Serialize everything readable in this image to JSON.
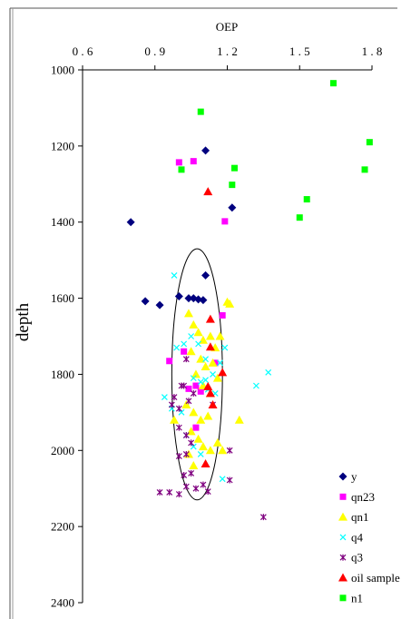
{
  "chart_data": {
    "type": "scatter",
    "title": "",
    "xlabel": "OEP",
    "ylabel": "depth",
    "xlim": [
      0.6,
      1.8
    ],
    "ylim": [
      1000,
      2400
    ],
    "y_inverted": true,
    "x_axis_position": "top",
    "xticks": [
      "0.6",
      "0.9",
      "1.2",
      "1.5",
      "1.8"
    ],
    "yticks": [
      "1000",
      "1200",
      "1400",
      "1600",
      "1800",
      "2000",
      "2200",
      "2400"
    ],
    "grid": false,
    "legend_position": "bottom-right",
    "annotation": "ellipse enclosing the main cluster (approx. OEP 0.97–1.18, depth 1470–2130)",
    "ellipse": {
      "cx": 1.075,
      "cy": 1800,
      "rx": 0.105,
      "ry": 330
    },
    "series": [
      {
        "name": "y",
        "marker": "diamond",
        "color": "#00007f",
        "points": [
          [
            0.8,
            1400
          ],
          [
            0.86,
            1608
          ],
          [
            0.92,
            1618
          ],
          [
            1.0,
            1595
          ],
          [
            1.04,
            1600
          ],
          [
            1.06,
            1600
          ],
          [
            1.08,
            1603
          ],
          [
            1.1,
            1605
          ],
          [
            1.11,
            1540
          ],
          [
            1.11,
            1212
          ],
          [
            1.22,
            1362
          ]
        ]
      },
      {
        "name": "qn23",
        "marker": "square",
        "color": "#ff00ff",
        "points": [
          [
            1.0,
            1243
          ],
          [
            1.06,
            1240
          ],
          [
            1.19,
            1398
          ],
          [
            0.96,
            1765
          ],
          [
            1.02,
            1740
          ],
          [
            1.04,
            1838
          ],
          [
            1.07,
            1830
          ],
          [
            1.09,
            1845
          ],
          [
            1.15,
            1770
          ],
          [
            1.07,
            1940
          ],
          [
            1.18,
            1645
          ]
        ]
      },
      {
        "name": "qn1",
        "marker": "triangle",
        "color": "#ffff00",
        "points": [
          [
            1.04,
            1640
          ],
          [
            1.06,
            1670
          ],
          [
            1.08,
            1690
          ],
          [
            1.1,
            1710
          ],
          [
            1.13,
            1700
          ],
          [
            1.15,
            1730
          ],
          [
            1.17,
            1700
          ],
          [
            1.2,
            1610
          ],
          [
            1.21,
            1615
          ],
          [
            1.05,
            1740
          ],
          [
            1.09,
            1760
          ],
          [
            1.11,
            1780
          ],
          [
            1.14,
            1770
          ],
          [
            1.07,
            1800
          ],
          [
            1.1,
            1830
          ],
          [
            1.13,
            1850
          ],
          [
            1.16,
            1810
          ],
          [
            1.03,
            1880
          ],
          [
            1.06,
            1900
          ],
          [
            1.09,
            1920
          ],
          [
            1.12,
            1910
          ],
          [
            1.05,
            1950
          ],
          [
            1.08,
            1970
          ],
          [
            1.1,
            1990
          ],
          [
            1.13,
            2000
          ],
          [
            1.16,
            1980
          ],
          [
            1.18,
            2000
          ],
          [
            1.04,
            2010
          ],
          [
            1.06,
            2040
          ],
          [
            1.25,
            1920
          ],
          [
            0.98,
            1920
          ]
        ]
      },
      {
        "name": "q4",
        "marker": "x",
        "color": "#00ffff",
        "points": [
          [
            0.98,
            1540
          ],
          [
            0.99,
            1730
          ],
          [
            1.02,
            1720
          ],
          [
            1.05,
            1700
          ],
          [
            1.08,
            1720
          ],
          [
            1.11,
            1760
          ],
          [
            1.14,
            1800
          ],
          [
            1.17,
            1770
          ],
          [
            1.19,
            1730
          ],
          [
            1.06,
            1810
          ],
          [
            1.09,
            1820
          ],
          [
            1.12,
            1840
          ],
          [
            1.15,
            1850
          ],
          [
            0.94,
            1860
          ],
          [
            0.97,
            1890
          ],
          [
            1.01,
            1900
          ],
          [
            1.03,
            1960
          ],
          [
            1.06,
            1990
          ],
          [
            1.09,
            2010
          ],
          [
            1.18,
            2075
          ],
          [
            1.32,
            1830
          ],
          [
            1.37,
            1795
          ],
          [
            1.11,
            1815
          ]
        ]
      },
      {
        "name": "q3",
        "marker": "star",
        "color": "#7f007f",
        "points": [
          [
            0.92,
            2110
          ],
          [
            0.96,
            2110
          ],
          [
            1.0,
            2115
          ],
          [
            1.03,
            2095
          ],
          [
            1.07,
            2100
          ],
          [
            1.12,
            2108
          ],
          [
            1.21,
            2078
          ],
          [
            1.35,
            2175
          ],
          [
            0.98,
            1860
          ],
          [
            0.97,
            1880
          ],
          [
            1.0,
            1890
          ],
          [
            1.02,
            1830
          ],
          [
            1.04,
            1870
          ],
          [
            1.06,
            1850
          ],
          [
            1.0,
            1940
          ],
          [
            1.03,
            1960
          ],
          [
            1.05,
            1980
          ],
          [
            1.03,
            2010
          ],
          [
            1.0,
            2015
          ],
          [
            1.05,
            2060
          ],
          [
            1.02,
            2065
          ],
          [
            1.1,
            2090
          ],
          [
            1.21,
            2000
          ],
          [
            1.03,
            1760
          ],
          [
            1.01,
            1830
          ],
          [
            1.14,
            1880
          ]
        ]
      },
      {
        "name": "oil sample",
        "marker": "triangle",
        "color": "#ff0000",
        "points": [
          [
            1.12,
            1320
          ],
          [
            1.13,
            1655
          ],
          [
            1.13,
            1728
          ],
          [
            1.18,
            1795
          ],
          [
            1.12,
            1832
          ],
          [
            1.13,
            1850
          ],
          [
            1.14,
            1880
          ],
          [
            1.11,
            2035
          ]
        ]
      },
      {
        "name": "n1",
        "marker": "square",
        "color": "#00ff00",
        "points": [
          [
            1.09,
            1110
          ],
          [
            1.01,
            1262
          ],
          [
            1.23,
            1258
          ],
          [
            1.22,
            1302
          ],
          [
            1.53,
            1340
          ],
          [
            1.5,
            1388
          ],
          [
            1.64,
            1035
          ],
          [
            1.79,
            1190
          ],
          [
            1.77,
            1262
          ]
        ]
      }
    ]
  }
}
